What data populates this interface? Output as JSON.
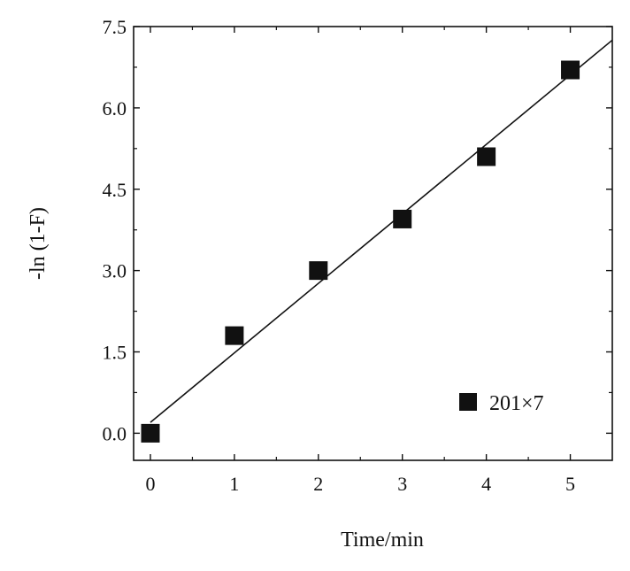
{
  "chart_data": {
    "type": "scatter",
    "xlabel": "Time/min",
    "ylabel": "-ln (1-F)",
    "xlim": [
      -0.2,
      5.5
    ],
    "ylim": [
      -0.5,
      7.5
    ],
    "x_ticks": [
      0,
      1,
      2,
      3,
      4,
      5
    ],
    "x_tick_labels": [
      "0",
      "1",
      "2",
      "3",
      "4",
      "5"
    ],
    "y_ticks": [
      0.0,
      1.5,
      3.0,
      4.5,
      6.0,
      7.5
    ],
    "y_tick_labels": [
      "0.0",
      "1.5",
      "3.0",
      "4.5",
      "6.0",
      "7.5"
    ],
    "grid": false,
    "legend_position": "bottom-right",
    "series": [
      {
        "name": "201×7",
        "marker": "square",
        "color": "#111111",
        "x": [
          0,
          1,
          2,
          3,
          4,
          5
        ],
        "y": [
          0.0,
          1.8,
          3.0,
          3.95,
          5.1,
          6.7
        ]
      }
    ],
    "fit_line": {
      "x": [
        0,
        5.5
      ],
      "y": [
        0.2,
        7.25
      ],
      "color": "#111111"
    }
  }
}
